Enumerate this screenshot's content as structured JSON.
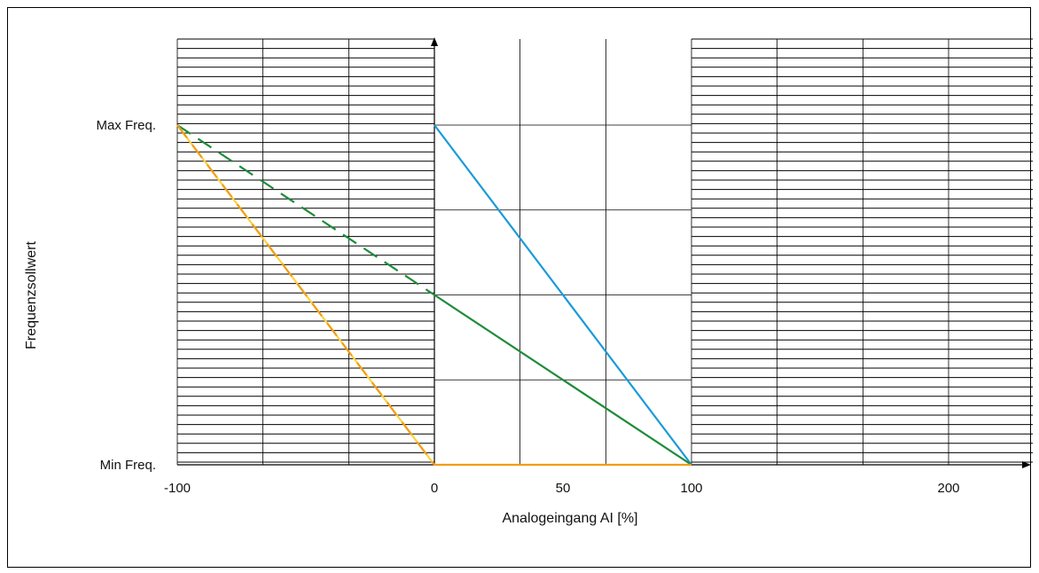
{
  "chart_data": {
    "type": "line",
    "title": "",
    "xlabel": "Analogeingang  AI [%]",
    "ylabel": "Frequenzsollwert",
    "xlim": [
      -100,
      225
    ],
    "x_ticks": [
      {
        "value": -100,
        "label": "-100"
      },
      {
        "value": 0,
        "label": "0"
      },
      {
        "value": 50,
        "label": "50"
      },
      {
        "value": 100,
        "label": "100"
      },
      {
        "value": 200,
        "label": "200"
      }
    ],
    "y_ticks": [
      {
        "value": 0,
        "label": "Min Freq."
      },
      {
        "value": 1,
        "label": "Max Freq."
      }
    ],
    "ylim": [
      0,
      1.2
    ],
    "grid": true,
    "series": [
      {
        "color": "#1a9bd7",
        "dash": false,
        "x": [
          0,
          100
        ],
        "y": [
          1,
          0
        ]
      },
      {
        "color": "#1e8c3a",
        "dash": false,
        "x": [
          0,
          100
        ],
        "y": [
          0.5,
          0
        ]
      },
      {
        "color": "#1e8c3a",
        "dash": true,
        "x": [
          -100,
          0
        ],
        "y": [
          1,
          0.5
        ]
      },
      {
        "color": "#f39c12",
        "dash": false,
        "x": [
          0,
          100
        ],
        "y": [
          0,
          0
        ]
      },
      {
        "color": "#ffd23f",
        "dash": false,
        "x": [
          -100,
          0
        ],
        "y": [
          1,
          0
        ]
      },
      {
        "color": "#f39c12",
        "dash": true,
        "x": [
          -100,
          0
        ],
        "y": [
          1,
          0
        ]
      }
    ]
  }
}
